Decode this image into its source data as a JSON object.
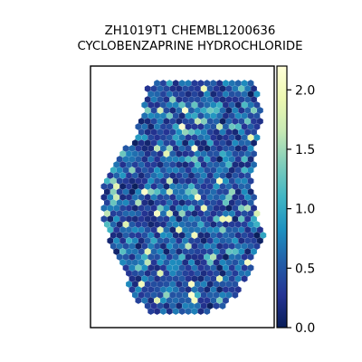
{
  "chart_data": {
    "type": "scatter",
    "title": [
      "ZH1019T1 CHEMBL1200636",
      "CYCLOBENZAPRINE HYDROCHLORIDE"
    ],
    "xlabel": "",
    "ylabel": "",
    "marker": "hexagon",
    "colormap": "YlGnBu_r",
    "colorbar": {
      "ticks": [
        0.0,
        0.5,
        1.0,
        1.5,
        2.0
      ],
      "tick_labels": [
        "0.0",
        "0.5",
        "1.0",
        "1.5",
        "2.0"
      ],
      "range": [
        0.0,
        2.2
      ]
    },
    "colors": {
      "cmap_stops": [
        "#081d58",
        "#253494",
        "#225ea8",
        "#1d91c0",
        "#41b6c4",
        "#7fcdbb",
        "#c7e9b4",
        "#edf8b1",
        "#ffffd9"
      ]
    },
    "seed": 1019,
    "value_distribution": "mostly 0.0–0.8, sparse bright spots up to ~2.2",
    "axes_frame": true,
    "grid": false,
    "legend": "none"
  }
}
